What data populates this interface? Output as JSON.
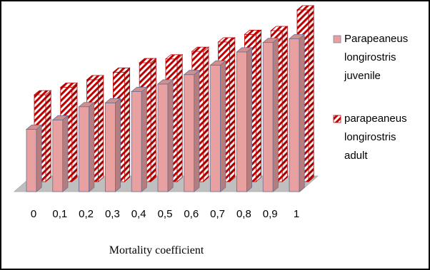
{
  "chart_data": {
    "type": "bar",
    "style": "3d-clustered-column",
    "categories": [
      "0",
      "0,1",
      "0,2",
      "0,3",
      "0,4",
      "0,5",
      "0,6",
      "0,7",
      "0,8",
      "0,9",
      "1"
    ],
    "series": [
      {
        "name": "Parapeaneus longirostris juvenile",
        "name_lines": [
          "Parapeaneus",
          "longirostris",
          "juvenile"
        ],
        "values": [
          0.33,
          0.38,
          0.45,
          0.47,
          0.53,
          0.57,
          0.62,
          0.67,
          0.74,
          0.79,
          0.81
        ],
        "color": "#E8A0A0",
        "fill_style": "solid"
      },
      {
        "name": "parapeaneus longirostris adult",
        "name_lines": [
          "parapeaneus",
          "longirostris",
          "adult"
        ],
        "values": [
          0.46,
          0.5,
          0.54,
          0.58,
          0.63,
          0.65,
          0.69,
          0.74,
          0.78,
          0.8,
          0.91
        ],
        "color": "#C00000",
        "fill_style": "diagonal-hatch"
      }
    ],
    "ylim": [
      0,
      1
    ],
    "xlabel": "Mortality coefficient",
    "ylabel": "",
    "title": "",
    "grid": false,
    "legend_position": "right",
    "floor_color": "#BFBFBF"
  }
}
